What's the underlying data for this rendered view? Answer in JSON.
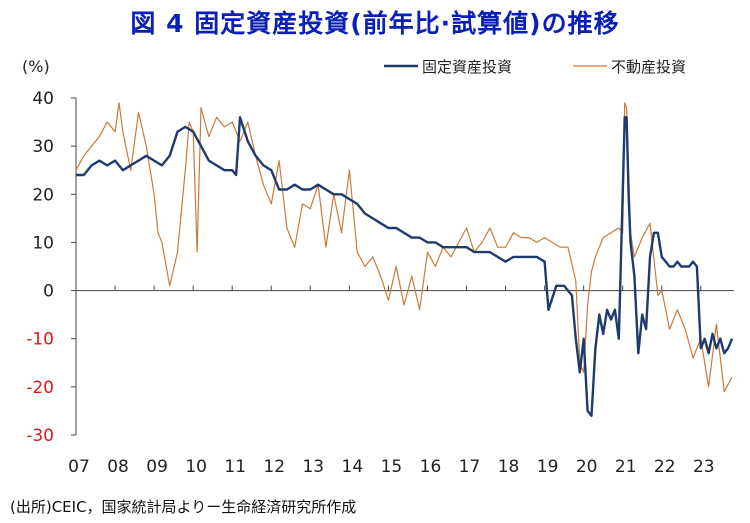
{
  "title": "図 4 固定資産投資(前年比·試算値)の推移",
  "unit_label": "(%)",
  "source": "(出所)CEIC，国家統計局よりー生命経済研究所作成",
  "colors": {
    "fixed": "#1f3a6e",
    "property": "#c97a3a",
    "negative_tick": "#e01818",
    "axis": "#444444"
  },
  "chart_data": {
    "type": "line",
    "title": "図 4 固定資産投資(前年比·試算値)の推移",
    "xlabel": "",
    "ylabel": "(%)",
    "ylim": [
      -30,
      40
    ],
    "yticks": [
      40,
      30,
      20,
      10,
      0,
      -10,
      -20,
      -30
    ],
    "xlim": [
      2007,
      2023.85
    ],
    "xticks": [
      "07",
      "08",
      "09",
      "10",
      "11",
      "12",
      "13",
      "14",
      "15",
      "16",
      "17",
      "18",
      "19",
      "20",
      "21",
      "22",
      "23"
    ],
    "legend": "top-right",
    "grid": false,
    "series": [
      {
        "name": "固定資産投資",
        "x": [
          2007.0,
          2007.2,
          2007.4,
          2007.6,
          2007.8,
          2008.0,
          2008.2,
          2008.4,
          2008.6,
          2008.8,
          2009.0,
          2009.2,
          2009.4,
          2009.6,
          2009.8,
          2010.0,
          2010.2,
          2010.4,
          2010.6,
          2010.8,
          2011.0,
          2011.1,
          2011.2,
          2011.4,
          2011.6,
          2011.8,
          2012.0,
          2012.2,
          2012.4,
          2012.6,
          2012.8,
          2013.0,
          2013.2,
          2013.4,
          2013.6,
          2013.8,
          2014.0,
          2014.2,
          2014.4,
          2014.6,
          2014.8,
          2015.0,
          2015.2,
          2015.4,
          2015.6,
          2015.8,
          2016.0,
          2016.2,
          2016.4,
          2016.6,
          2016.8,
          2017.0,
          2017.2,
          2017.4,
          2017.6,
          2017.8,
          2018.0,
          2018.2,
          2018.4,
          2018.6,
          2018.8,
          2019.0,
          2019.1,
          2019.3,
          2019.5,
          2019.7,
          2019.8,
          2019.9,
          2020.0,
          2020.1,
          2020.2,
          2020.3,
          2020.4,
          2020.5,
          2020.6,
          2020.7,
          2020.8,
          2020.9,
          2021.0,
          2021.05,
          2021.1,
          2021.15,
          2021.2,
          2021.3,
          2021.4,
          2021.5,
          2021.6,
          2021.7,
          2021.8,
          2021.9,
          2022.0,
          2022.1,
          2022.2,
          2022.3,
          2022.4,
          2022.5,
          2022.6,
          2022.7,
          2022.8,
          2022.9,
          2023.0,
          2023.1,
          2023.2,
          2023.3,
          2023.4,
          2023.5,
          2023.6,
          2023.7,
          2023.8
        ],
        "values": [
          24,
          24,
          26,
          27,
          26,
          27,
          25,
          26,
          27,
          28,
          27,
          26,
          28,
          33,
          34,
          33,
          30,
          27,
          26,
          25,
          25,
          24,
          36,
          31,
          28,
          26,
          25,
          21,
          21,
          22,
          21,
          21,
          22,
          21,
          20,
          20,
          19,
          18,
          16,
          15,
          14,
          13,
          13,
          12,
          11,
          11,
          10,
          10,
          9,
          9,
          9,
          9,
          8,
          8,
          8,
          7,
          6,
          7,
          7,
          7,
          7,
          6,
          -4,
          1,
          1,
          -1,
          -10,
          -17,
          -10,
          -25,
          -26,
          -12,
          -5,
          -9,
          -4,
          -6,
          -4,
          -10,
          20,
          36,
          36,
          20,
          10,
          3,
          -13,
          -5,
          -8,
          7,
          12,
          12,
          7,
          6,
          5,
          5,
          6,
          5,
          5,
          5,
          6,
          5,
          -12,
          -10,
          -13,
          -9,
          -12,
          -10,
          -13,
          -12,
          -10
        ]
      },
      {
        "name": "不動産投資",
        "x": [
          2007.0,
          2007.2,
          2007.4,
          2007.6,
          2007.8,
          2008.0,
          2008.1,
          2008.2,
          2008.4,
          2008.6,
          2008.8,
          2009.0,
          2009.1,
          2009.2,
          2009.4,
          2009.6,
          2009.8,
          2009.9,
          2010.0,
          2010.1,
          2010.2,
          2010.4,
          2010.6,
          2010.8,
          2011.0,
          2011.2,
          2011.4,
          2011.6,
          2011.8,
          2012.0,
          2012.2,
          2012.4,
          2012.6,
          2012.8,
          2013.0,
          2013.2,
          2013.4,
          2013.6,
          2013.8,
          2014.0,
          2014.2,
          2014.4,
          2014.6,
          2014.8,
          2015.0,
          2015.2,
          2015.4,
          2015.6,
          2015.8,
          2016.0,
          2016.2,
          2016.4,
          2016.6,
          2016.8,
          2017.0,
          2017.2,
          2017.4,
          2017.6,
          2017.8,
          2018.0,
          2018.2,
          2018.4,
          2018.6,
          2018.8,
          2019.0,
          2019.2,
          2019.4,
          2019.6,
          2019.8,
          2019.9,
          2020.0,
          2020.1,
          2020.2,
          2020.3,
          2020.5,
          2020.7,
          2020.9,
          2021.0,
          2021.05,
          2021.1,
          2021.2,
          2021.3,
          2021.5,
          2021.7,
          2021.9,
          2022.0,
          2022.2,
          2022.4,
          2022.6,
          2022.8,
          2023.0,
          2023.2,
          2023.4,
          2023.6,
          2023.8
        ],
        "values": [
          25,
          28,
          30,
          32,
          35,
          33,
          39,
          33,
          25,
          37,
          30,
          20,
          12,
          10,
          1,
          8,
          25,
          35,
          33,
          8,
          38,
          32,
          36,
          34,
          35,
          31,
          35,
          28,
          22,
          18,
          27,
          13,
          9,
          18,
          17,
          22,
          9,
          20,
          12,
          25,
          8,
          5,
          7,
          3,
          -2,
          5,
          -3,
          3,
          -4,
          8,
          5,
          9,
          7,
          10,
          13,
          8,
          10,
          13,
          9,
          9,
          12,
          11,
          11,
          10,
          11,
          10,
          9,
          9,
          2,
          -15,
          -17,
          -3,
          4,
          7,
          11,
          12,
          13,
          12,
          39,
          38,
          12,
          7,
          11,
          14,
          -1,
          0,
          -8,
          -4,
          -8,
          -14,
          -10,
          -20,
          -7,
          -21,
          -18
        ]
      }
    ]
  }
}
